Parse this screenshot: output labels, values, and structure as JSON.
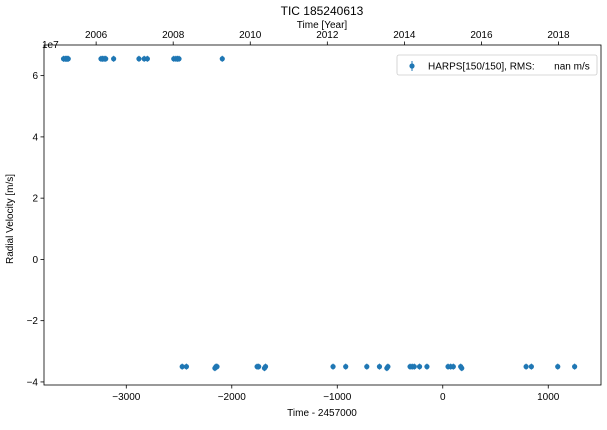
{
  "chart_data": {
    "type": "scatter",
    "title": "TIC 185240613",
    "xlabel": "Time - 2457000",
    "ylabel": "Radial Velocity [m/s]",
    "top_xlabel": "Time [Year]",
    "y_offset_text": "1e7",
    "xlim": [
      -3780,
      1500
    ],
    "ylim": [
      -4.1,
      7.0
    ],
    "x_ticks": [
      -3000,
      -2000,
      -1000,
      0,
      1000
    ],
    "x_tick_labels": [
      "−3000",
      "−2000",
      "−1000",
      "0",
      "1000"
    ],
    "y_ticks": [
      -4,
      -2,
      0,
      2,
      4,
      6
    ],
    "y_tick_labels": [
      "−4",
      "−2",
      "0",
      "2",
      "4",
      "6"
    ],
    "top_ticks": [
      2006,
      2008,
      2010,
      2012,
      2014,
      2016,
      2018
    ],
    "top_tick_labels": [
      "2006",
      "2008",
      "2010",
      "2012",
      "2014",
      "2016",
      "2018"
    ],
    "legend": {
      "label": "HARPS[150/150], RMS:       nan m/s",
      "position": "top-right"
    },
    "grid": false,
    "series": [
      {
        "name": "HARPS[150/150], RMS:       nan m/s",
        "color": "#1f77b4",
        "points": [
          [
            -3595,
            6.55
          ],
          [
            -3580,
            6.55
          ],
          [
            -3570,
            6.55
          ],
          [
            -3560,
            6.55
          ],
          [
            -3550,
            6.55
          ],
          [
            -3240,
            6.55
          ],
          [
            -3225,
            6.55
          ],
          [
            -3210,
            6.55
          ],
          [
            -3195,
            6.55
          ],
          [
            -3120,
            6.55
          ],
          [
            -2880,
            6.55
          ],
          [
            -2830,
            6.55
          ],
          [
            -2800,
            6.55
          ],
          [
            -2550,
            6.55
          ],
          [
            -2530,
            6.55
          ],
          [
            -2515,
            6.55
          ],
          [
            -2500,
            6.55
          ],
          [
            -2090,
            6.55
          ],
          [
            -2470,
            -3.5
          ],
          [
            -2430,
            -3.5
          ],
          [
            -2160,
            -3.55
          ],
          [
            -2150,
            -3.5
          ],
          [
            -2140,
            -3.5
          ],
          [
            -1760,
            -3.5
          ],
          [
            -1745,
            -3.5
          ],
          [
            -1690,
            -3.55
          ],
          [
            -1680,
            -3.5
          ],
          [
            -1040,
            -3.5
          ],
          [
            -920,
            -3.5
          ],
          [
            -720,
            -3.5
          ],
          [
            -600,
            -3.5
          ],
          [
            -530,
            -3.55
          ],
          [
            -520,
            -3.5
          ],
          [
            -310,
            -3.5
          ],
          [
            -290,
            -3.5
          ],
          [
            -270,
            -3.5
          ],
          [
            -220,
            -3.5
          ],
          [
            -150,
            -3.5
          ],
          [
            50,
            -3.5
          ],
          [
            75,
            -3.5
          ],
          [
            100,
            -3.5
          ],
          [
            170,
            -3.5
          ],
          [
            180,
            -3.55
          ],
          [
            790,
            -3.5
          ],
          [
            840,
            -3.5
          ],
          [
            1090,
            -3.5
          ],
          [
            1250,
            -3.5
          ]
        ]
      }
    ]
  }
}
